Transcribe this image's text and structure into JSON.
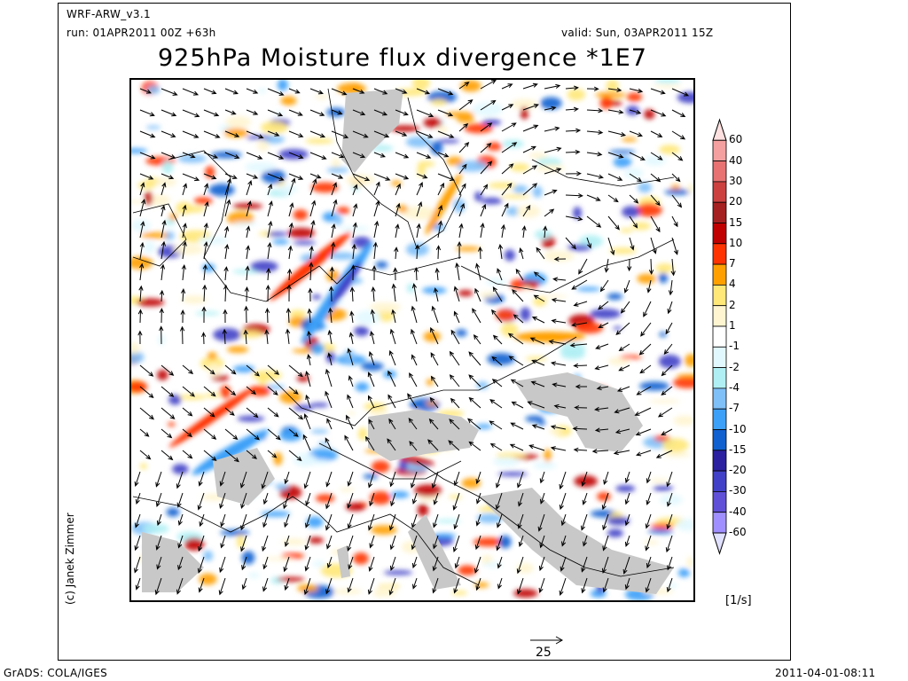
{
  "header": {
    "model": "WRF-ARW_v3.1",
    "run": "run: 01APR2011 00Z +63h",
    "valid": "valid: Sun, 03APR2011 15Z",
    "title": "925hPa Moisture flux divergence *1E7"
  },
  "credit": "(c) Janek Zimmer",
  "colorbar": {
    "unit": "[1/s]",
    "levels": [
      "60",
      "40",
      "30",
      "20",
      "15",
      "10",
      "7",
      "4",
      "2",
      "1",
      "-1",
      "-2",
      "-4",
      "-7",
      "-10",
      "-15",
      "-20",
      "-30",
      "-40",
      "-60"
    ],
    "colors": [
      "#ffe0e0",
      "#f5a0a0",
      "#e87272",
      "#cc4040",
      "#a52020",
      "#c00000",
      "#ff3300",
      "#ffa000",
      "#ffe878",
      "#fff5d0",
      "#ffffff",
      "#e2f8ff",
      "#b0f0f4",
      "#80c0f8",
      "#3ca0f8",
      "#1060d0",
      "#2a20a0",
      "#4040c8",
      "#6050d8",
      "#a090ff",
      "#e0e0ff"
    ]
  },
  "vector_reference": {
    "value": "25"
  },
  "footer": {
    "left": "GrADS: COLA/IGES",
    "right": "2011-04-01-08:11"
  }
}
